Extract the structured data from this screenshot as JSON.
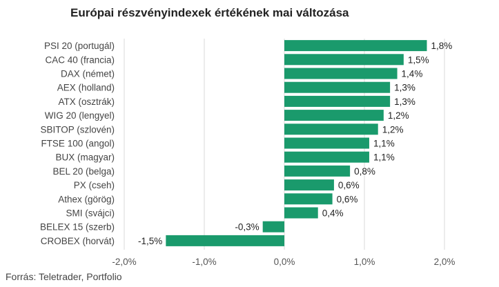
{
  "chart_data": {
    "type": "bar",
    "orientation": "horizontal",
    "title": "Európai részvényindexek értékének mai változása",
    "source": "Forrás: Teletrader, Portfolio",
    "categories": [
      "PSI 20 (portugál)",
      "CAC 40 (francia)",
      "DAX (német)",
      "AEX (holland)",
      "ATX (osztrák)",
      "WIG 20 (lengyel)",
      "SBITOP (szlovén)",
      "FTSE 100 (angol)",
      "BUX (magyar)",
      "BEL 20 (belga)",
      "PX (cseh)",
      "Athex (görög)",
      "SMI (svájci)",
      "BELEX 15 (szerb)",
      "CROBEX (horvát)"
    ],
    "values": [
      1.78,
      1.49,
      1.41,
      1.32,
      1.32,
      1.24,
      1.17,
      1.06,
      1.06,
      0.82,
      0.62,
      0.6,
      0.42,
      -0.27,
      -1.48
    ],
    "value_labels": [
      "1,8%",
      "1,5%",
      "1,4%",
      "1,3%",
      "1,3%",
      "1,2%",
      "1,2%",
      "1,1%",
      "1,1%",
      "0,8%",
      "0,6%",
      "0,6%",
      "0,4%",
      "-0,3%",
      "-1,5%"
    ],
    "x_ticks": [
      -2.0,
      -1.0,
      0.0,
      1.0,
      2.0
    ],
    "x_tick_labels": [
      "-2,0%",
      "-1,0%",
      "0,0%",
      "1,0%",
      "2,0%"
    ],
    "xlim": [
      -2.0,
      2.0
    ],
    "grid": "vertical",
    "legend": "none",
    "bar_color": "#1a9a6c",
    "grid_color": "#d9d9d9"
  }
}
